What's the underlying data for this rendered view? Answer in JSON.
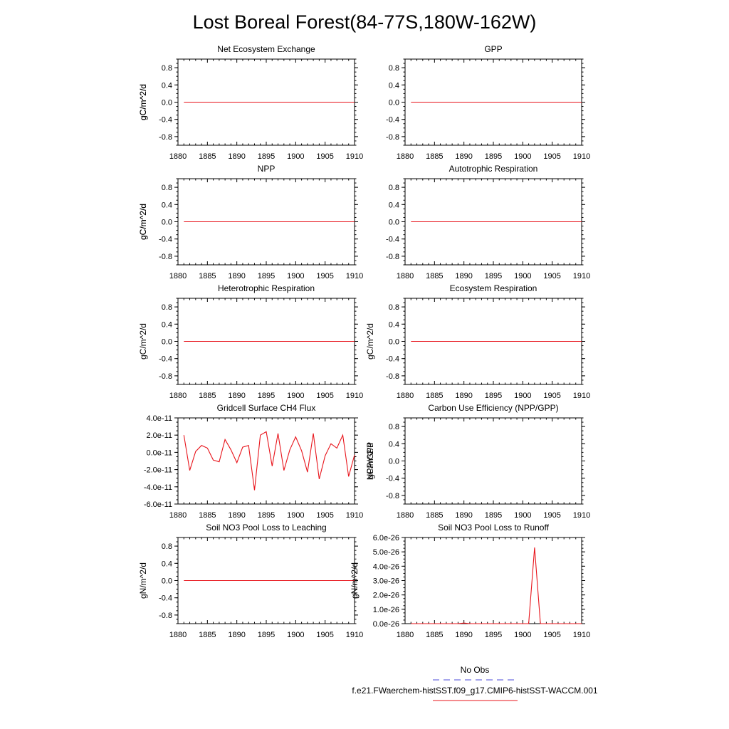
{
  "title": "Lost Boreal Forest(84-77S,180W-162W)",
  "colors": {
    "model_line": "#e8141b",
    "obs_line": "#4b4bd8",
    "axis": "#000000"
  },
  "legend": {
    "entries": [
      {
        "label": "No Obs",
        "style": "dashed",
        "color": "#4b4bd8"
      },
      {
        "label": "f.e21.FWaerchem-histSST.f09_g17.CMIP6-histSST-WACCM.001",
        "style": "solid",
        "color": "#e8141b"
      }
    ]
  },
  "chart_data": [
    {
      "type": "line",
      "title": "Net Ecosystem Exchange",
      "ylabel": "gC/m^2/d",
      "xlim": [
        1880,
        1910
      ],
      "ylim": [
        -1,
        1
      ],
      "xticks": [
        "1880",
        "1885",
        "1890",
        "1895",
        "1900",
        "1905",
        "1910"
      ],
      "yticks": [
        "0.8",
        "0.4",
        "0.0",
        "-0.4",
        "-0.8"
      ],
      "ytick_values": [
        0.8,
        0.4,
        0,
        -0.4,
        -0.8
      ],
      "series": [
        {
          "x": [
            1881,
            1910
          ],
          "values": [
            0,
            0
          ]
        }
      ]
    },
    {
      "type": "line",
      "title": "GPP",
      "ylabel": "gC/m^2/d",
      "xlim": [
        1880,
        1910
      ],
      "ylim": [
        -1,
        1
      ],
      "xticks": [
        "1880",
        "1885",
        "1890",
        "1895",
        "1900",
        "1905",
        "1910"
      ],
      "yticks": [
        "0.8",
        "0.4",
        "0.0",
        "-0.4",
        "-0.8"
      ],
      "ytick_values": [
        0.8,
        0.4,
        0,
        -0.4,
        -0.8
      ],
      "series": [
        {
          "x": [
            1881,
            1910
          ],
          "values": [
            0,
            0
          ]
        }
      ]
    },
    {
      "type": "line",
      "title": "NPP",
      "ylabel": "gC/m^2/d",
      "xlim": [
        1880,
        1910
      ],
      "ylim": [
        -1,
        1
      ],
      "xticks": [
        "1880",
        "1885",
        "1890",
        "1895",
        "1900",
        "1905",
        "1910"
      ],
      "yticks": [
        "0.8",
        "0.4",
        "0.0",
        "-0.4",
        "-0.8"
      ],
      "ytick_values": [
        0.8,
        0.4,
        0,
        -0.4,
        -0.8
      ],
      "series": [
        {
          "x": [
            1881,
            1910
          ],
          "values": [
            0,
            0
          ]
        }
      ]
    },
    {
      "type": "line",
      "title": "Autotrophic Respiration",
      "ylabel": "gC/m^2/d",
      "xlim": [
        1880,
        1910
      ],
      "ylim": [
        -1,
        1
      ],
      "xticks": [
        "1880",
        "1885",
        "1890",
        "1895",
        "1900",
        "1905",
        "1910"
      ],
      "yticks": [
        "0.8",
        "0.4",
        "0.0",
        "-0.4",
        "-0.8"
      ],
      "ytick_values": [
        0.8,
        0.4,
        0,
        -0.4,
        -0.8
      ],
      "series": [
        {
          "x": [
            1881,
            1910
          ],
          "values": [
            0,
            0
          ]
        }
      ]
    },
    {
      "type": "line",
      "title": "Heterotrophic Respiration",
      "ylabel": "gC/m^2/d",
      "xlim": [
        1880,
        1910
      ],
      "ylim": [
        -1,
        1
      ],
      "xticks": [
        "1880",
        "1885",
        "1890",
        "1895",
        "1900",
        "1905",
        "1910"
      ],
      "yticks": [
        "0.8",
        "0.4",
        "0.0",
        "-0.4",
        "-0.8"
      ],
      "ytick_values": [
        0.8,
        0.4,
        0,
        -0.4,
        -0.8
      ],
      "series": [
        {
          "x": [
            1881,
            1910
          ],
          "values": [
            0,
            0
          ]
        }
      ]
    },
    {
      "type": "line",
      "title": "Ecosystem Respiration",
      "ylabel": "gC/m^2/d",
      "xlim": [
        1880,
        1910
      ],
      "ylim": [
        -1,
        1
      ],
      "xticks": [
        "1880",
        "1885",
        "1890",
        "1895",
        "1900",
        "1905",
        "1910"
      ],
      "yticks": [
        "0.8",
        "0.4",
        "0.0",
        "-0.4",
        "-0.8"
      ],
      "ytick_values": [
        0.8,
        0.4,
        0,
        -0.4,
        -0.8
      ],
      "series": [
        {
          "x": [
            1881,
            1910
          ],
          "values": [
            0,
            0
          ]
        }
      ]
    },
    {
      "type": "line",
      "title": "Gridcell Surface CH4 Flux",
      "ylabel": "gC/m^2/d",
      "xlim": [
        1880,
        1910
      ],
      "ylim": [
        -6e-11,
        4e-11
      ],
      "xticks": [
        "1880",
        "1885",
        "1890",
        "1895",
        "1900",
        "1905",
        "1910"
      ],
      "yticks": [
        "4.0e-11",
        "2.0e-11",
        "0.0e-11",
        "-2.0e-11",
        "-4.0e-11",
        "-6.0e-11"
      ],
      "ytick_values": [
        4e-11,
        2e-11,
        0,
        -2e-11,
        -4e-11,
        -6e-11
      ],
      "series": [
        {
          "x": [
            1881,
            1882,
            1883,
            1884,
            1885,
            1886,
            1887,
            1888,
            1889,
            1890,
            1891,
            1892,
            1893,
            1894,
            1895,
            1896,
            1897,
            1898,
            1899,
            1900,
            1901,
            1902,
            1903,
            1904,
            1905,
            1906,
            1907,
            1908,
            1909,
            1910
          ],
          "values": [
            2e-11,
            -2.1e-11,
            1e-12,
            8e-12,
            5e-12,
            -9e-12,
            -1.1e-11,
            1.5e-11,
            3e-12,
            -1.2e-11,
            6e-12,
            8e-12,
            -4.4e-11,
            2e-11,
            2.4e-11,
            -1.6e-11,
            2.2e-11,
            -2.1e-11,
            3e-12,
            1.8e-11,
            2e-12,
            -2.3e-11,
            2.2e-11,
            -3.1e-11,
            -4e-12,
            1e-11,
            5e-12,
            2e-11,
            -2.8e-11,
            -3e-12
          ]
        }
      ]
    },
    {
      "type": "line",
      "title": "Carbon Use Efficiency (NPP/GPP)",
      "ylabel": "NPP/GPP",
      "xlim": [
        1880,
        1910
      ],
      "ylim": [
        -1,
        1
      ],
      "xticks": [
        "1880",
        "1885",
        "1890",
        "1895",
        "1900",
        "1905",
        "1910"
      ],
      "yticks": [
        "0.8",
        "0.4",
        "0.0",
        "-0.4",
        "-0.8"
      ],
      "ytick_values": [
        0.8,
        0.4,
        0,
        -0.4,
        -0.8
      ],
      "series": []
    },
    {
      "type": "line",
      "title": "Soil NO3 Pool Loss to Leaching",
      "ylabel": "gN/m^2/d",
      "xlim": [
        1880,
        1910
      ],
      "ylim": [
        -1,
        1
      ],
      "xticks": [
        "1880",
        "1885",
        "1890",
        "1895",
        "1900",
        "1905",
        "1910"
      ],
      "yticks": [
        "0.8",
        "0.4",
        "0.0",
        "-0.4",
        "-0.8"
      ],
      "ytick_values": [
        0.8,
        0.4,
        0,
        -0.4,
        -0.8
      ],
      "series": [
        {
          "x": [
            1881,
            1910
          ],
          "values": [
            0,
            0
          ]
        }
      ]
    },
    {
      "type": "line",
      "title": "Soil NO3 Pool Loss to Runoff",
      "ylabel": "gN/m^2/d",
      "xlim": [
        1880,
        1910
      ],
      "ylim": [
        0,
        6e-26
      ],
      "xticks": [
        "1880",
        "1885",
        "1890",
        "1895",
        "1900",
        "1905",
        "1910"
      ],
      "yticks": [
        "6.0e-26",
        "5.0e-26",
        "4.0e-26",
        "3.0e-26",
        "2.0e-26",
        "1.0e-26",
        "0.0e-26"
      ],
      "ytick_values": [
        6e-26,
        5e-26,
        4e-26,
        3e-26,
        2e-26,
        1e-26,
        0
      ],
      "series": [
        {
          "x": [
            1881,
            1882,
            1883,
            1884,
            1885,
            1886,
            1887,
            1888,
            1889,
            1890,
            1891,
            1892,
            1893,
            1894,
            1895,
            1896,
            1897,
            1898,
            1899,
            1900,
            1901,
            1902,
            1903,
            1904,
            1905,
            1906,
            1907,
            1908,
            1909,
            1910
          ],
          "values": [
            0,
            0,
            0,
            0,
            0,
            0,
            0,
            0,
            0,
            4e-28,
            0,
            0,
            0,
            0,
            0,
            0,
            0,
            0,
            0,
            0,
            0,
            5.3e-26,
            0,
            0,
            0,
            0,
            0,
            0,
            0,
            0
          ]
        }
      ]
    }
  ]
}
